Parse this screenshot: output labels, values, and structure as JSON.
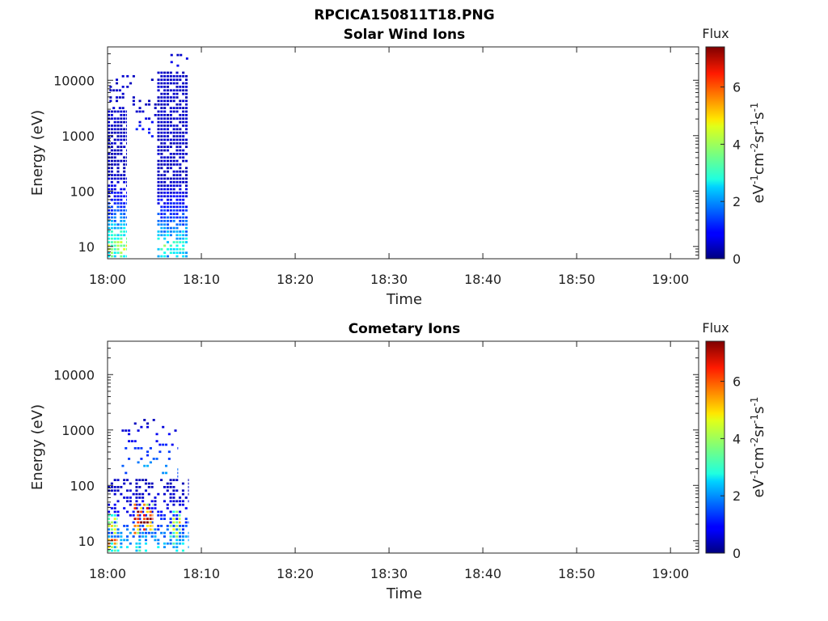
{
  "figure_title": "RPCICA150811T18.PNG",
  "chart_data": [
    {
      "type": "heatmap",
      "title": "Solar Wind Ions",
      "xlabel": "Time",
      "ylabel": "Energy (eV)",
      "x_ticks": [
        "18:00",
        "18:10",
        "18:20",
        "18:30",
        "18:40",
        "18:50",
        "19:00"
      ],
      "x_range_minutes": [
        0,
        63
      ],
      "y_scale": "log",
      "y_ticks": [
        "10",
        "100",
        "1000",
        "10000"
      ],
      "y_range": [
        6,
        40000
      ],
      "colorbar": {
        "title": "Flux",
        "label": "eV-1cm-2sr-1s-1",
        "ticks": [
          "0",
          "2",
          "4",
          "6"
        ],
        "range": [
          0,
          7.4
        ],
        "colormap": "jet"
      },
      "regions": [
        {
          "t_start_min": 0.0,
          "t_end_min": 2.0,
          "e_min_ev": 6,
          "e_max_ev": 3000,
          "e_peak_ev": 10,
          "flux_peak": 4.0,
          "density": 0.85
        },
        {
          "t_start_min": 0.2,
          "t_end_min": 1.8,
          "e_min_ev": 3000,
          "e_max_ev": 15000,
          "e_peak_ev": 10,
          "flux_peak": 1.1,
          "density": 0.35
        },
        {
          "t_start_min": 2.0,
          "t_end_min": 5.3,
          "e_min_ev": 900,
          "e_max_ev": 12000,
          "e_peak_ev": 1000,
          "flux_peak": 1.2,
          "density": 0.22
        },
        {
          "t_start_min": 5.3,
          "t_end_min": 8.6,
          "e_min_ev": 6,
          "e_max_ev": 15000,
          "e_peak_ev": 10,
          "flux_peak": 3.2,
          "density": 0.82
        },
        {
          "t_start_min": 6.7,
          "t_end_min": 8.6,
          "e_min_ev": 15000,
          "e_max_ev": 30000,
          "e_peak_ev": 15000,
          "flux_peak": 0.9,
          "density": 0.2
        }
      ]
    },
    {
      "type": "heatmap",
      "title": "Cometary Ions",
      "xlabel": "Time",
      "ylabel": "Energy (eV)",
      "x_ticks": [
        "18:00",
        "18:10",
        "18:20",
        "18:30",
        "18:40",
        "18:50",
        "19:00"
      ],
      "x_range_minutes": [
        0,
        63
      ],
      "y_scale": "log",
      "y_ticks": [
        "10",
        "100",
        "1000",
        "10000"
      ],
      "y_range": [
        6,
        40000
      ],
      "colorbar": {
        "title": "Flux",
        "label": "eV-1cm-2sr-1s-1",
        "ticks": [
          "0",
          "2",
          "4",
          "6"
        ],
        "range": [
          0,
          7.4
        ],
        "colormap": "jet"
      },
      "regions": [
        {
          "t_start_min": 0.0,
          "t_end_min": 8.6,
          "e_min_ev": 6,
          "e_max_ev": 130,
          "e_peak_ev": 6,
          "flux_peak": 3.0,
          "density": 0.45
        },
        {
          "t_start_min": 0.0,
          "t_end_min": 1.0,
          "e_min_ev": 6,
          "e_max_ev": 30,
          "e_peak_ev": 12,
          "flux_peak": 5.8,
          "density": 0.95
        },
        {
          "t_start_min": 2.8,
          "t_end_min": 4.8,
          "e_min_ev": 12,
          "e_max_ev": 45,
          "e_peak_ev": 25,
          "flux_peak": 7.2,
          "density": 0.95
        },
        {
          "t_start_min": 6.6,
          "t_end_min": 7.8,
          "e_min_ev": 8,
          "e_max_ev": 35,
          "e_peak_ev": 18,
          "flux_peak": 4.8,
          "density": 0.9
        },
        {
          "t_start_min": 1.5,
          "t_end_min": 7.5,
          "e_min_ev": 130,
          "e_max_ev": 1500,
          "e_peak_ev": 200,
          "flux_peak": 2.0,
          "density": 0.18
        }
      ]
    }
  ]
}
